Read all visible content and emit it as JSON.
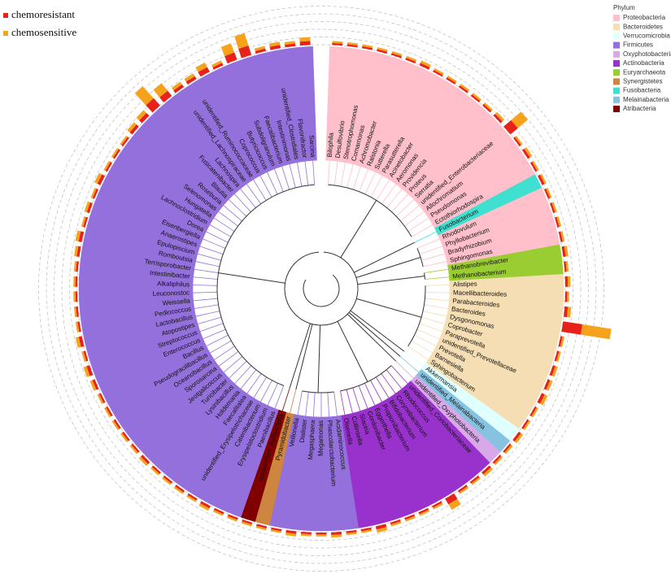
{
  "legend_phylum": {
    "title": "Phylum",
    "items": [
      {
        "label": "Proteobacteria",
        "color": "#ffc0cb"
      },
      {
        "label": "Bacteroidetes",
        "color": "#f5deb3"
      },
      {
        "label": "Verrucomicrobia",
        "color": "#e0ffff"
      },
      {
        "label": "Firmicutes",
        "color": "#9370db"
      },
      {
        "label": "Oxyphotobacteria",
        "color": "#d8a8e8"
      },
      {
        "label": "Actinobacteria",
        "color": "#9932cc"
      },
      {
        "label": "Euryarchaeota",
        "color": "#9acd32"
      },
      {
        "label": "Synergistetes",
        "color": "#cd853f"
      },
      {
        "label": "Fusobacteria",
        "color": "#40e0d0"
      },
      {
        "label": "Melainabacteria",
        "color": "#87c3e0"
      },
      {
        "label": "Atribacteria",
        "color": "#800000"
      }
    ]
  },
  "leaves": [
    {
      "name": "Bilophila",
      "phylum": "Proteobacteria"
    },
    {
      "name": "Desulfovibrio",
      "phylum": "Proteobacteria"
    },
    {
      "name": "Stenotrophomonas",
      "phylum": "Proteobacteria"
    },
    {
      "name": "Comamonas",
      "phylum": "Proteobacteria"
    },
    {
      "name": "Achromobacter",
      "phylum": "Proteobacteria"
    },
    {
      "name": "Ralstonia",
      "phylum": "Proteobacteria"
    },
    {
      "name": "Sutterella",
      "phylum": "Proteobacteria"
    },
    {
      "name": "Parasutterella",
      "phylum": "Proteobacteria"
    },
    {
      "name": "Acinetobacter",
      "phylum": "Proteobacteria"
    },
    {
      "name": "Aeromonas",
      "phylum": "Proteobacteria"
    },
    {
      "name": "Providencia",
      "phylum": "Proteobacteria"
    },
    {
      "name": "Proteus",
      "phylum": "Proteobacteria"
    },
    {
      "name": "Serratia",
      "phylum": "Proteobacteria"
    },
    {
      "name": "unidentified_Enterobacteriaceae",
      "phylum": "Proteobacteria"
    },
    {
      "name": "Allochromatium",
      "phylum": "Proteobacteria"
    },
    {
      "name": "Pseudomonas",
      "phylum": "Proteobacteria"
    },
    {
      "name": "Ectothiorhodospira",
      "phylum": "Proteobacteria"
    },
    {
      "name": "Fusobacterium",
      "phylum": "Fusobacteria"
    },
    {
      "name": "Rhodovulum",
      "phylum": "Proteobacteria"
    },
    {
      "name": "Phyllobacterium",
      "phylum": "Proteobacteria"
    },
    {
      "name": "Bradyrhizobium",
      "phylum": "Proteobacteria"
    },
    {
      "name": "Sphingomonas",
      "phylum": "Proteobacteria"
    },
    {
      "name": "Methanobrevibacter",
      "phylum": "Euryarchaeota"
    },
    {
      "name": "Methanobacterium",
      "phylum": "Euryarchaeota"
    },
    {
      "name": "Alistipes",
      "phylum": "Bacteroidetes"
    },
    {
      "name": "Macellibacteroides",
      "phylum": "Bacteroidetes"
    },
    {
      "name": "Parabacteroides",
      "phylum": "Bacteroidetes"
    },
    {
      "name": "Bacteroides",
      "phylum": "Bacteroidetes"
    },
    {
      "name": "Dysgonomonas",
      "phylum": "Bacteroidetes"
    },
    {
      "name": "Coprobacter",
      "phylum": "Bacteroidetes"
    },
    {
      "name": "Paraprevotella",
      "phylum": "Bacteroidetes"
    },
    {
      "name": "unidentified_Prevotellaceae",
      "phylum": "Bacteroidetes"
    },
    {
      "name": "Prevotella",
      "phylum": "Bacteroidetes"
    },
    {
      "name": "Barnesiella",
      "phylum": "Bacteroidetes"
    },
    {
      "name": "Sphingobacterium",
      "phylum": "Bacteroidetes"
    },
    {
      "name": "Akkermansia",
      "phylum": "Verrucomicrobia"
    },
    {
      "name": "unidentified_Melainabacteria",
      "phylum": "Melainabacteria"
    },
    {
      "name": "unidentified_Oxyphotobacteria",
      "phylum": "Oxyphotobacteria"
    },
    {
      "name": "unidentified_Coriobacteriaceae",
      "phylum": "Actinobacteria"
    },
    {
      "name": "Rhodococcus",
      "phylum": "Actinobacteria"
    },
    {
      "name": "Corynebacterium",
      "phylum": "Actinobacteria"
    },
    {
      "name": "Bifidobacterium",
      "phylum": "Actinobacteria"
    },
    {
      "name": "Propionibacterium",
      "phylum": "Actinobacteria"
    },
    {
      "name": "Eggerthella",
      "phylum": "Actinobacteria"
    },
    {
      "name": "Gordonibacter",
      "phylum": "Actinobacteria"
    },
    {
      "name": "Slackia",
      "phylum": "Actinobacteria"
    },
    {
      "name": "Collinsella",
      "phylum": "Actinobacteria"
    },
    {
      "name": "Olsenella",
      "phylum": "Actinobacteria"
    },
    {
      "name": "Acidaminococcus",
      "phylum": "Firmicutes"
    },
    {
      "name": "Phascolarctobacterium",
      "phylum": "Firmicutes"
    },
    {
      "name": "Megamonas",
      "phylum": "Firmicutes"
    },
    {
      "name": "Megasphaera",
      "phylum": "Firmicutes"
    },
    {
      "name": "Dialister",
      "phylum": "Firmicutes"
    },
    {
      "name": "Veillonella",
      "phylum": "Firmicutes"
    },
    {
      "name": "Pyramidobacter",
      "phylum": "Synergistetes"
    },
    {
      "name": "unidentified_Atribacteria",
      "phylum": "Atribacteria"
    },
    {
      "name": "Paenibacillus",
      "phylum": "Firmicutes"
    },
    {
      "name": "Erysipelatoclostridium",
      "phylum": "Firmicutes"
    },
    {
      "name": "Catenibacterium",
      "phylum": "Firmicutes"
    },
    {
      "name": "unidentified_Erysipelotrichaceae",
      "phylum": "Firmicutes"
    },
    {
      "name": "Faecalitalea",
      "phylum": "Firmicutes"
    },
    {
      "name": "Holdemania",
      "phylum": "Firmicutes"
    },
    {
      "name": "Lysinibacillus",
      "phylum": "Firmicutes"
    },
    {
      "name": "Turicibacter",
      "phylum": "Firmicutes"
    },
    {
      "name": "Jeotgalicoccus",
      "phylum": "Firmicutes"
    },
    {
      "name": "Sporosarcina",
      "phylum": "Firmicutes"
    },
    {
      "name": "Oceanobacillus",
      "phylum": "Firmicutes"
    },
    {
      "name": "Pseudogracilibacillus",
      "phylum": "Firmicutes"
    },
    {
      "name": "Bacillus",
      "phylum": "Firmicutes"
    },
    {
      "name": "Enterococcus",
      "phylum": "Firmicutes"
    },
    {
      "name": "Streptococcus",
      "phylum": "Firmicutes"
    },
    {
      "name": "Atopostipes",
      "phylum": "Firmicutes"
    },
    {
      "name": "Lactobacillus",
      "phylum": "Firmicutes"
    },
    {
      "name": "Pediococcus",
      "phylum": "Firmicutes"
    },
    {
      "name": "Weissella",
      "phylum": "Firmicutes"
    },
    {
      "name": "Leuconostoc",
      "phylum": "Firmicutes"
    },
    {
      "name": "Alkaliphilus",
      "phylum": "Firmicutes"
    },
    {
      "name": "Intestinibacter",
      "phylum": "Firmicutes"
    },
    {
      "name": "Terrisporobacter",
      "phylum": "Firmicutes"
    },
    {
      "name": "Romboutsia",
      "phylum": "Firmicutes"
    },
    {
      "name": "Epulopiscium",
      "phylum": "Firmicutes"
    },
    {
      "name": "Anaerostipes",
      "phylum": "Firmicutes"
    },
    {
      "name": "Eisenbergiella",
      "phylum": "Firmicutes"
    },
    {
      "name": "Dorea",
      "phylum": "Firmicutes"
    },
    {
      "name": "Lachnoclostridium",
      "phylum": "Firmicutes"
    },
    {
      "name": "Hungatella",
      "phylum": "Firmicutes"
    },
    {
      "name": "Selenomonas",
      "phylum": "Firmicutes"
    },
    {
      "name": "Roseburia",
      "phylum": "Firmicutes"
    },
    {
      "name": "Blautia",
      "phylum": "Firmicutes"
    },
    {
      "name": "Fusicatenibacter",
      "phylum": "Firmicutes"
    },
    {
      "name": "Lachnospira",
      "phylum": "Firmicutes"
    },
    {
      "name": "unidentified_Lachnospiraceae",
      "phylum": "Firmicutes"
    },
    {
      "name": "unidentified_Ruminococcaceae",
      "phylum": "Firmicutes"
    },
    {
      "name": "Coprococcus",
      "phylum": "Firmicutes"
    },
    {
      "name": "Butyricicoccus",
      "phylum": "Firmicutes"
    },
    {
      "name": "Subdoligranulum",
      "phylum": "Firmicutes"
    },
    {
      "name": "Faecalibacterium",
      "phylum": "Firmicutes"
    },
    {
      "name": "Intestinimonas",
      "phylum": "Firmicutes"
    },
    {
      "name": "unidentified_Clostridiales",
      "phylum": "Firmicutes"
    },
    {
      "name": "Flavonifractor",
      "phylum": "Firmicutes"
    },
    {
      "name": "Sarcina",
      "phylum": "Firmicutes"
    }
  ],
  "bars": {
    "series": [
      {
        "name": "chemoresistant",
        "color": "#e8221b",
        "values": [
          0.3,
          0.3,
          0.3,
          0.3,
          0.3,
          0.3,
          0.4,
          0.3,
          0.3,
          0.3,
          0.3,
          0.3,
          0.4,
          1.5,
          0.3,
          0.4,
          0.3,
          0.4,
          0.3,
          0.3,
          0.3,
          0.3,
          0.4,
          0.3,
          0.4,
          0.3,
          0.5,
          3,
          0.3,
          0.3,
          0.4,
          0.4,
          0.5,
          0.3,
          0.3,
          0.4,
          0.3,
          0.3,
          0.4,
          0.3,
          0.3,
          1,
          0.3,
          0.3,
          0.3,
          0.3,
          0.5,
          0.3,
          0.3,
          0.4,
          0.3,
          0.3,
          0.4,
          0.3,
          0.3,
          0.3,
          0.3,
          0.3,
          0.4,
          0.3,
          0.3,
          0.3,
          0.3,
          0.4,
          0.3,
          0.3,
          0.3,
          0.3,
          0.3,
          0.4,
          0.5,
          0.3,
          0.5,
          0.3,
          0.3,
          0.3,
          0.3,
          0.3,
          0.4,
          0.5,
          0.3,
          0.4,
          0.3,
          0.5,
          0.3,
          0.3,
          0.3,
          0.5,
          0.6,
          1.5,
          1,
          0.5,
          0.5,
          0.8,
          0.4,
          1.2,
          1.5,
          0.4,
          0.5,
          0.4,
          0.6
        ]
      },
      {
        "name": "chemosensitive",
        "color": "#f7a21b",
        "values": [
          0.3,
          0.3,
          0.3,
          0.3,
          0.3,
          0.3,
          0.4,
          0.3,
          0.3,
          0.3,
          0.3,
          0.3,
          0.4,
          2,
          0.3,
          0.4,
          0.3,
          0.3,
          0.3,
          0.3,
          0.3,
          0.3,
          0.4,
          0.3,
          0.4,
          0.3,
          0.5,
          4.5,
          0.3,
          0.3,
          0.4,
          0.4,
          0.5,
          0.3,
          0.3,
          0.4,
          0.3,
          0.3,
          0.4,
          0.3,
          0.3,
          1,
          0.3,
          0.3,
          0.3,
          0.3,
          0.5,
          0.3,
          0.3,
          0.4,
          0.3,
          0.3,
          0.4,
          0.3,
          0.3,
          0.3,
          0.3,
          0.3,
          0.4,
          0.3,
          0.3,
          0.3,
          0.3,
          0.4,
          0.3,
          0.3,
          0.3,
          0.3,
          0.3,
          0.4,
          0.5,
          0.3,
          0.5,
          0.3,
          0.3,
          0.3,
          0.3,
          0.3,
          0.4,
          0.5,
          0.3,
          0.4,
          0.3,
          0.5,
          0.3,
          0.3,
          0.3,
          0.5,
          0.6,
          2.5,
          1.5,
          0.5,
          0.5,
          0.8,
          0.4,
          1.5,
          2,
          0.4,
          0.5,
          0.4,
          0.6
        ]
      }
    ]
  }
}
